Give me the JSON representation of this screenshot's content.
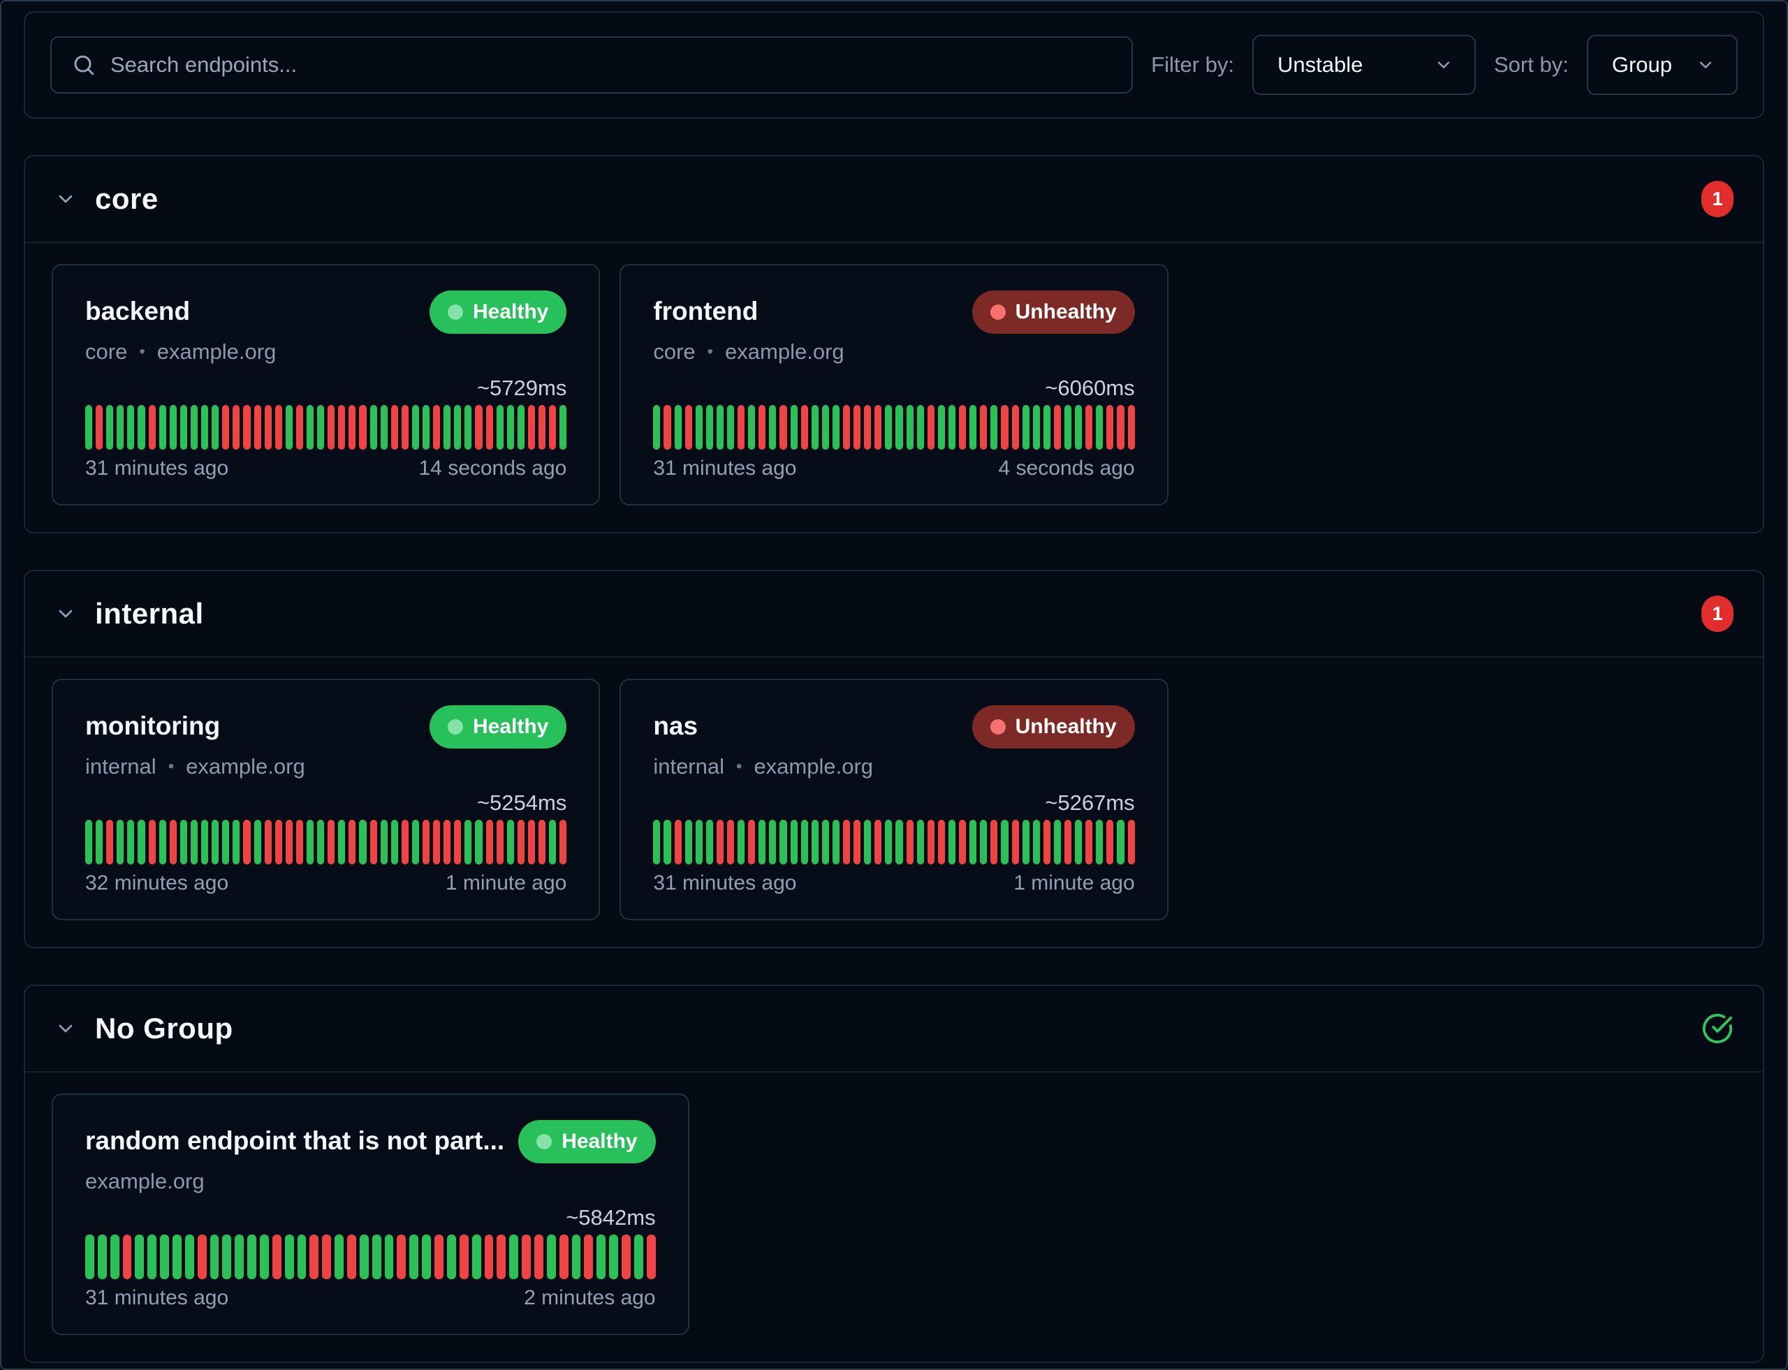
{
  "ui": {
    "meta_separator": "•"
  },
  "toolbar": {
    "search_placeholder": "Search endpoints...",
    "filter_label": "Filter by:",
    "filter_value": "Unstable",
    "sort_label": "Sort by:",
    "sort_value": "Group"
  },
  "colors": {
    "page_bg": "#050b15",
    "card_bg": "#060d18",
    "border": "#1d2636",
    "healthy_badge": "#27c05a",
    "healthy_dot": "#86e3a8",
    "unhealthy_badge": "#7d2a26",
    "unhealthy_dot": "#f87171",
    "bar_healthy": "#2bc158",
    "bar_unhealthy": "#ee4444",
    "count_badge": "#e22d2d",
    "check_icon": "#2dc95e"
  },
  "groups": [
    {
      "name": "core",
      "badge": {
        "type": "count",
        "value": "1"
      },
      "endpoints": [
        {
          "name": "backend",
          "status": "Healthy",
          "group": "core",
          "host": "example.org",
          "response_time": "~5729ms",
          "history_start": "31 minutes ago",
          "history_end": "14 seconds ago",
          "history": [
            "up",
            "down",
            "up",
            "up",
            "up",
            "up",
            "down",
            "up",
            "up",
            "up",
            "up",
            "up",
            "up",
            "down",
            "down",
            "down",
            "down",
            "down",
            "down",
            "up",
            "down",
            "up",
            "up",
            "down",
            "down",
            "down",
            "down",
            "up",
            "up",
            "down",
            "down",
            "up",
            "up",
            "down",
            "up",
            "up",
            "up",
            "down",
            "down",
            "up",
            "up",
            "up",
            "down",
            "down",
            "down",
            "up"
          ]
        },
        {
          "name": "frontend",
          "status": "Unhealthy",
          "group": "core",
          "host": "example.org",
          "response_time": "~6060ms",
          "history_start": "31 minutes ago",
          "history_end": "4 seconds ago",
          "history": [
            "up",
            "down",
            "up",
            "down",
            "up",
            "up",
            "up",
            "up",
            "down",
            "up",
            "down",
            "up",
            "down",
            "up",
            "down",
            "up",
            "up",
            "up",
            "down",
            "down",
            "down",
            "down",
            "up",
            "up",
            "up",
            "up",
            "down",
            "up",
            "up",
            "down",
            "up",
            "down",
            "up",
            "down",
            "down",
            "up",
            "up",
            "up",
            "down",
            "up",
            "up",
            "down",
            "up",
            "down",
            "down",
            "down"
          ]
        }
      ]
    },
    {
      "name": "internal",
      "badge": {
        "type": "count",
        "value": "1"
      },
      "endpoints": [
        {
          "name": "monitoring",
          "status": "Healthy",
          "group": "internal",
          "host": "example.org",
          "response_time": "~5254ms",
          "history_start": "32 minutes ago",
          "history_end": "1 minute ago",
          "history": [
            "up",
            "up",
            "down",
            "up",
            "up",
            "up",
            "down",
            "up",
            "down",
            "up",
            "up",
            "up",
            "up",
            "up",
            "up",
            "down",
            "up",
            "down",
            "down",
            "down",
            "down",
            "up",
            "up",
            "down",
            "up",
            "down",
            "up",
            "down",
            "up",
            "up",
            "down",
            "up",
            "down",
            "down",
            "down",
            "down",
            "up",
            "up",
            "down",
            "down",
            "up",
            "down",
            "down",
            "down",
            "up",
            "down"
          ]
        },
        {
          "name": "nas",
          "status": "Unhealthy",
          "group": "internal",
          "host": "example.org",
          "response_time": "~5267ms",
          "history_start": "31 minutes ago",
          "history_end": "1 minute ago",
          "history": [
            "up",
            "up",
            "down",
            "up",
            "up",
            "up",
            "down",
            "down",
            "up",
            "down",
            "up",
            "up",
            "up",
            "up",
            "up",
            "up",
            "up",
            "up",
            "down",
            "down",
            "up",
            "down",
            "up",
            "up",
            "down",
            "up",
            "down",
            "down",
            "up",
            "down",
            "up",
            "up",
            "down",
            "up",
            "down",
            "up",
            "up",
            "down",
            "up",
            "down",
            "up",
            "down",
            "up",
            "down",
            "up",
            "down"
          ]
        }
      ]
    },
    {
      "name": "No Group",
      "badge": {
        "type": "check"
      },
      "endpoints": [
        {
          "name": "random endpoint that is not part...",
          "status": "Healthy",
          "group": null,
          "host": "example.org",
          "response_time": "~5842ms",
          "history_start": "31 minutes ago",
          "history_end": "2 minutes ago",
          "history": [
            "up",
            "up",
            "up",
            "down",
            "up",
            "up",
            "up",
            "up",
            "up",
            "down",
            "up",
            "up",
            "up",
            "up",
            "up",
            "down",
            "up",
            "up",
            "down",
            "down",
            "up",
            "down",
            "up",
            "up",
            "up",
            "down",
            "up",
            "up",
            "down",
            "up",
            "down",
            "up",
            "down",
            "down",
            "up",
            "down",
            "down",
            "up",
            "down",
            "up",
            "down",
            "up",
            "up",
            "down",
            "up",
            "down"
          ]
        }
      ]
    }
  ]
}
